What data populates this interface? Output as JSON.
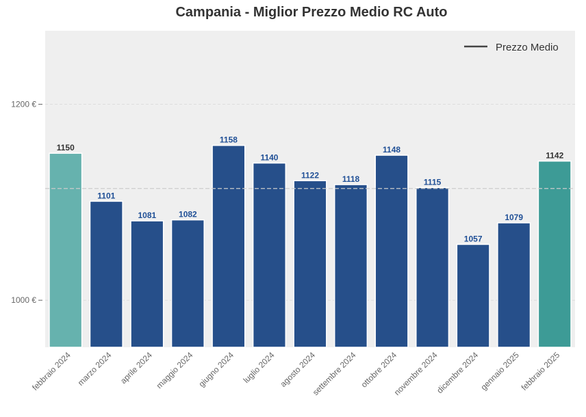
{
  "chart_data": {
    "type": "bar",
    "title": "Campania - Miglior Prezzo Medio RC Auto",
    "xlabel": "",
    "ylabel": "",
    "categories": [
      "febbraio 2024",
      "marzo 2024",
      "aprile 2024",
      "maggio 2024",
      "giugno 2024",
      "luglio 2024",
      "agosto 2024",
      "settembre 2024",
      "ottobre 2024",
      "novembre 2024",
      "dicembre 2024",
      "gennaio 2025",
      "febbraio 2025"
    ],
    "values": [
      1150,
      1101,
      1081,
      1082,
      1158,
      1140,
      1122,
      1118,
      1148,
      1115,
      1057,
      1079,
      1142
    ],
    "bar_colors": [
      "#66b2ae",
      "#264f8a",
      "#264f8a",
      "#264f8a",
      "#264f8a",
      "#264f8a",
      "#264f8a",
      "#264f8a",
      "#264f8a",
      "#264f8a",
      "#264f8a",
      "#264f8a",
      "#3d9b96"
    ],
    "label_colors": [
      "#333333",
      "#1f4f96",
      "#1f4f96",
      "#1f4f96",
      "#1f4f96",
      "#1f4f96",
      "#1f4f96",
      "#1f4f96",
      "#1f4f96",
      "#1f4f96",
      "#1f4f96",
      "#1f4f96",
      "#333333"
    ],
    "mean_line": {
      "value": 1114,
      "legend": "Prezzo Medio",
      "color": "#cccccc"
    },
    "ylim": [
      952,
      1275
    ],
    "yticks": [
      1000,
      1200
    ],
    "ytick_labels": [
      "1000 €",
      "1200 €"
    ],
    "grid": true,
    "legend_position": "top-right",
    "background_color": "#efefef"
  }
}
